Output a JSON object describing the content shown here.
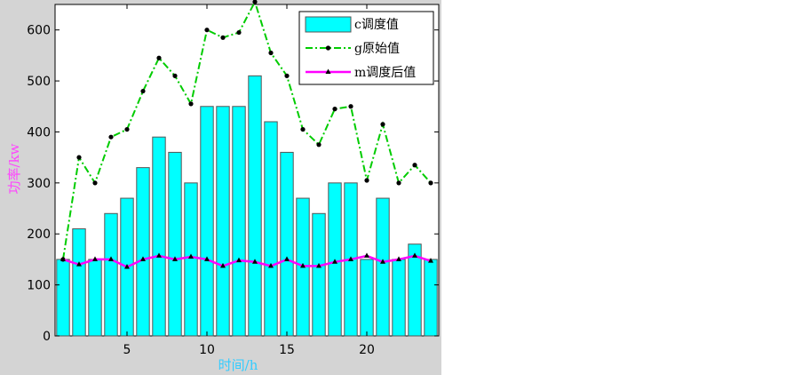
{
  "chart_data": {
    "type": "bar",
    "x": [
      1,
      2,
      3,
      4,
      5,
      6,
      7,
      8,
      9,
      10,
      11,
      12,
      13,
      14,
      15,
      16,
      17,
      18,
      19,
      20,
      21,
      22,
      23,
      24
    ],
    "series": [
      {
        "name": "c调度值",
        "kind": "bar",
        "color": "#00ffff",
        "values": [
          150,
          210,
          150,
          240,
          270,
          330,
          390,
          360,
          300,
          450,
          450,
          450,
          510,
          420,
          360,
          270,
          240,
          300,
          300,
          150,
          270,
          150,
          180,
          150
        ]
      },
      {
        "name": "g原始值",
        "kind": "line",
        "color": "#00cc00",
        "line_style": "dash-dot",
        "marker": "dot",
        "values": [
          150,
          350,
          300,
          390,
          405,
          480,
          545,
          510,
          455,
          600,
          585,
          595,
          655,
          555,
          510,
          405,
          375,
          445,
          450,
          305,
          415,
          300,
          335,
          300
        ]
      },
      {
        "name": "m调度后值",
        "kind": "line",
        "color": "#ff00ff",
        "line_style": "solid",
        "marker": "triangle",
        "values": [
          150,
          140,
          150,
          150,
          135,
          150,
          157,
          150,
          155,
          150,
          137,
          148,
          145,
          137,
          150,
          137,
          137,
          145,
          150,
          157,
          145,
          150,
          157,
          147
        ]
      }
    ],
    "xlabel": "时间/h",
    "ylabel": "功率/kw",
    "xlabel_color": "#33ccff",
    "ylabel_color": "#ff44ff",
    "xlim": [
      0.5,
      24.5
    ],
    "ylim": [
      0,
      650
    ],
    "xticks": [
      5,
      10,
      15,
      20
    ],
    "yticks": [
      0,
      100,
      200,
      300,
      400,
      500,
      600
    ],
    "grid": false,
    "legend_position": "top-right"
  }
}
